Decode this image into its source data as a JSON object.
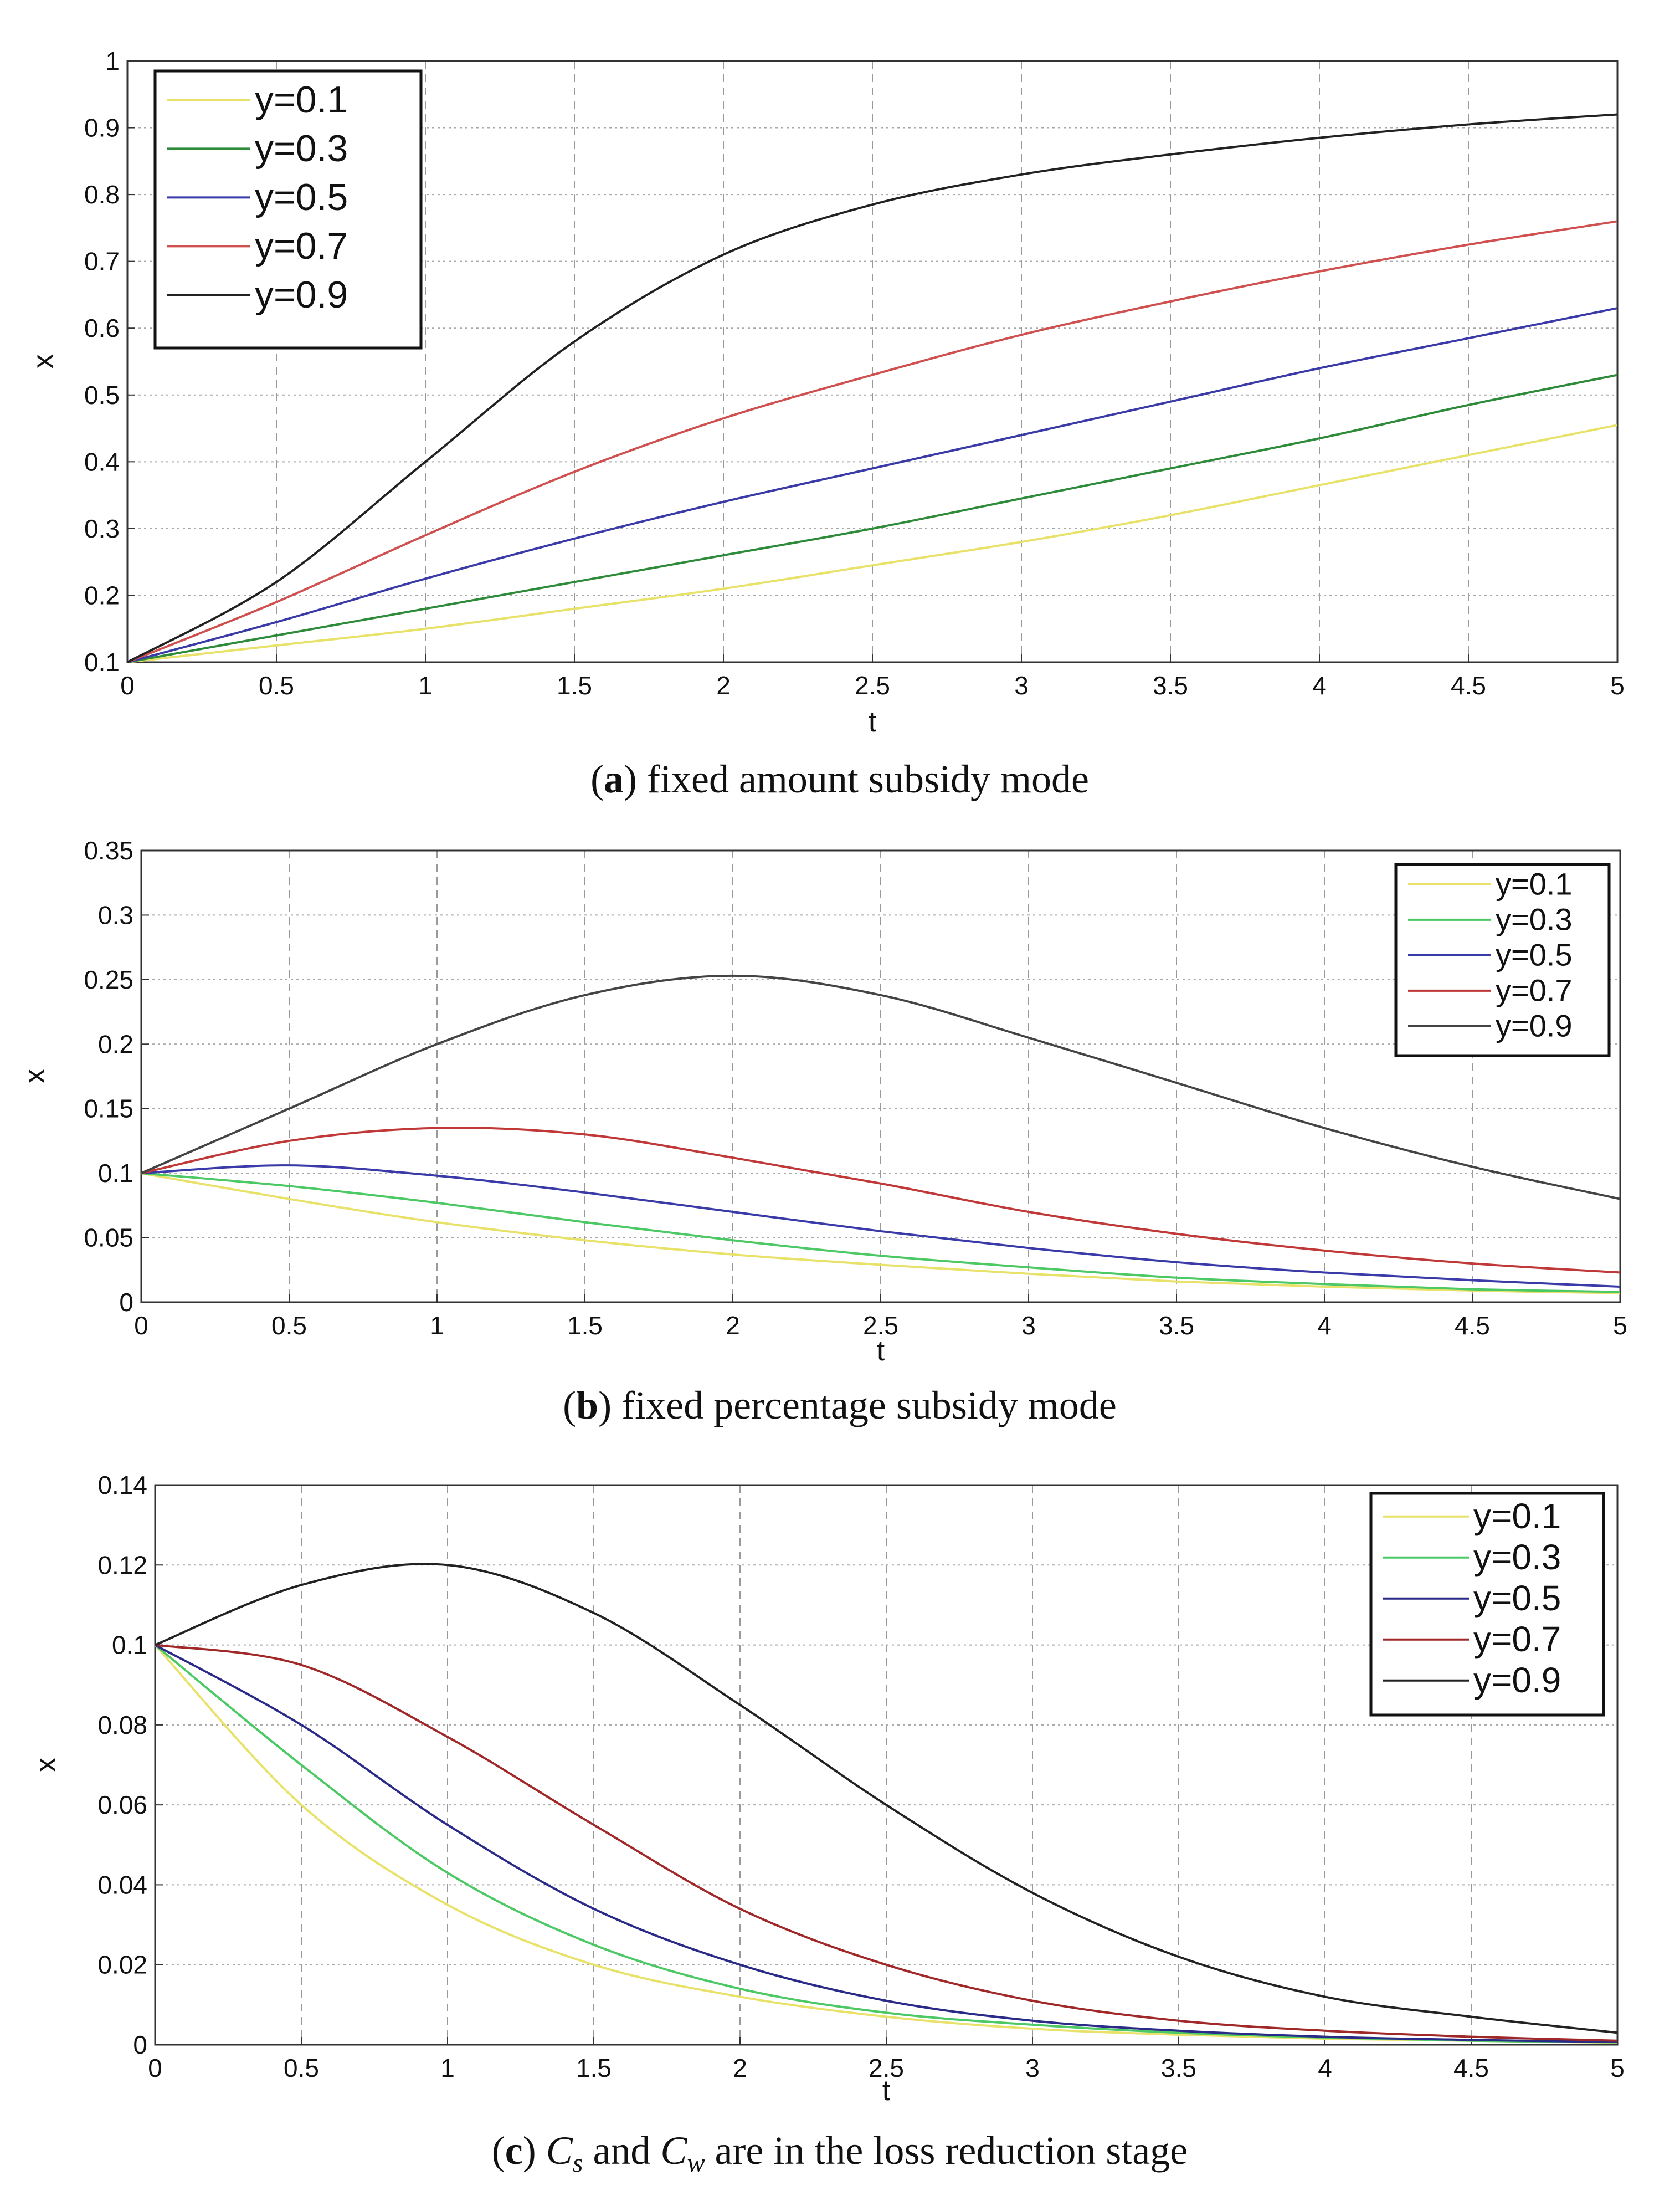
{
  "chart_data": [
    {
      "id": "a",
      "type": "line",
      "title": "",
      "xlabel": "t",
      "ylabel": "x",
      "xlim": [
        0,
        5
      ],
      "ylim": [
        0.1,
        1
      ],
      "xticks": [
        0,
        0.5,
        1,
        1.5,
        2,
        2.5,
        3,
        3.5,
        4,
        4.5,
        5
      ],
      "yticks": [
        0.1,
        0.2,
        0.3,
        0.4,
        0.5,
        0.6,
        0.7,
        0.8,
        0.9,
        1
      ],
      "grid": true,
      "legend_position": "top-left",
      "caption": {
        "prefix": "(",
        "letter": "a",
        "rest": ") fixed amount subsidy mode"
      },
      "series": [
        {
          "name": "y=0.1",
          "color": "#e8e26a",
          "x": [
            0,
            0.5,
            1,
            1.5,
            2,
            2.5,
            3,
            3.5,
            4,
            4.5,
            5
          ],
          "values": [
            0.1,
            0.125,
            0.15,
            0.18,
            0.21,
            0.245,
            0.28,
            0.32,
            0.365,
            0.41,
            0.455
          ]
        },
        {
          "name": "y=0.3",
          "color": "#2e8b3a",
          "x": [
            0,
            0.5,
            1,
            1.5,
            2,
            2.5,
            3,
            3.5,
            4,
            4.5,
            5
          ],
          "values": [
            0.1,
            0.14,
            0.18,
            0.22,
            0.26,
            0.3,
            0.345,
            0.39,
            0.435,
            0.485,
            0.53
          ]
        },
        {
          "name": "y=0.5",
          "color": "#3a3aa8",
          "x": [
            0,
            0.5,
            1,
            1.5,
            2,
            2.5,
            3,
            3.5,
            4,
            4.5,
            5
          ],
          "values": [
            0.1,
            0.16,
            0.225,
            0.285,
            0.34,
            0.39,
            0.44,
            0.49,
            0.54,
            0.585,
            0.63
          ]
        },
        {
          "name": "y=0.7",
          "color": "#d05050",
          "x": [
            0,
            0.5,
            1,
            1.5,
            2,
            2.5,
            3,
            3.5,
            4,
            4.5,
            5
          ],
          "values": [
            0.1,
            0.19,
            0.29,
            0.385,
            0.465,
            0.53,
            0.59,
            0.64,
            0.685,
            0.725,
            0.76
          ]
        },
        {
          "name": "y=0.9",
          "color": "#222222",
          "x": [
            0,
            0.5,
            1,
            1.5,
            2,
            2.5,
            3,
            3.5,
            4,
            4.5,
            5
          ],
          "values": [
            0.1,
            0.22,
            0.4,
            0.58,
            0.71,
            0.785,
            0.83,
            0.86,
            0.885,
            0.905,
            0.92
          ]
        }
      ]
    },
    {
      "id": "b",
      "type": "line",
      "title": "",
      "xlabel": "t",
      "ylabel": "x",
      "xlim": [
        0,
        5
      ],
      "ylim": [
        0,
        0.35
      ],
      "xticks": [
        0,
        0.5,
        1,
        1.5,
        2,
        2.5,
        3,
        3.5,
        4,
        4.5,
        5
      ],
      "yticks": [
        0,
        0.05,
        0.1,
        0.15,
        0.2,
        0.25,
        0.3,
        0.35
      ],
      "grid": true,
      "legend_position": "top-right",
      "caption": {
        "prefix": "(",
        "letter": "b",
        "rest": ") fixed percentage subsidy mode"
      },
      "series": [
        {
          "name": "y=0.1",
          "color": "#e8e26a",
          "x": [
            0,
            0.5,
            1,
            1.5,
            2,
            2.5,
            3,
            3.5,
            4,
            4.5,
            5
          ],
          "values": [
            0.1,
            0.08,
            0.062,
            0.048,
            0.037,
            0.029,
            0.022,
            0.016,
            0.012,
            0.009,
            0.007
          ]
        },
        {
          "name": "y=0.3",
          "color": "#4cc864",
          "x": [
            0,
            0.5,
            1,
            1.5,
            2,
            2.5,
            3,
            3.5,
            4,
            4.5,
            5
          ],
          "values": [
            0.1,
            0.09,
            0.077,
            0.062,
            0.048,
            0.036,
            0.027,
            0.019,
            0.014,
            0.01,
            0.008
          ]
        },
        {
          "name": "y=0.5",
          "color": "#3a3aa8",
          "x": [
            0,
            0.5,
            1,
            1.5,
            2,
            2.5,
            3,
            3.5,
            4,
            4.5,
            5
          ],
          "values": [
            0.1,
            0.106,
            0.098,
            0.085,
            0.07,
            0.055,
            0.042,
            0.031,
            0.023,
            0.017,
            0.012
          ]
        },
        {
          "name": "y=0.7",
          "color": "#c03838",
          "x": [
            0,
            0.5,
            1,
            1.5,
            2,
            2.5,
            3,
            3.5,
            4,
            4.5,
            5
          ],
          "values": [
            0.1,
            0.125,
            0.135,
            0.13,
            0.112,
            0.092,
            0.07,
            0.053,
            0.04,
            0.03,
            0.023
          ]
        },
        {
          "name": "y=0.9",
          "color": "#444444",
          "x": [
            0,
            0.5,
            1,
            1.5,
            2,
            2.5,
            3,
            3.5,
            4,
            4.5,
            5
          ],
          "values": [
            0.1,
            0.15,
            0.2,
            0.238,
            0.253,
            0.238,
            0.205,
            0.17,
            0.135,
            0.105,
            0.08
          ]
        }
      ]
    },
    {
      "id": "c",
      "type": "line",
      "title": "",
      "xlabel": "t",
      "ylabel": "x",
      "xlim": [
        0,
        5
      ],
      "ylim": [
        0,
        0.14
      ],
      "xticks": [
        0,
        0.5,
        1,
        1.5,
        2,
        2.5,
        3,
        3.5,
        4,
        4.5,
        5
      ],
      "yticks": [
        0,
        0.02,
        0.04,
        0.06,
        0.08,
        0.1,
        0.12,
        0.14
      ],
      "grid": true,
      "legend_position": "top-right",
      "caption": {
        "prefix": "(",
        "letter": "c",
        "mid1": ") ",
        "sym1": "C",
        "sub1": "s",
        "mid2": "  and  ",
        "sym2": "C",
        "sub2": "w",
        "rest": "  are in the loss reduction stage"
      },
      "series": [
        {
          "name": "y=0.1",
          "color": "#e8e26a",
          "x": [
            0,
            0.5,
            1,
            1.5,
            2,
            2.5,
            3,
            3.5,
            4,
            4.5,
            5
          ],
          "values": [
            0.1,
            0.06,
            0.035,
            0.02,
            0.012,
            0.007,
            0.004,
            0.0025,
            0.0015,
            0.001,
            0.0005
          ]
        },
        {
          "name": "y=0.3",
          "color": "#4cc864",
          "x": [
            0,
            0.5,
            1,
            1.5,
            2,
            2.5,
            3,
            3.5,
            4,
            4.5,
            5
          ],
          "values": [
            0.1,
            0.07,
            0.043,
            0.025,
            0.014,
            0.008,
            0.005,
            0.003,
            0.0018,
            0.001,
            0.0006
          ]
        },
        {
          "name": "y=0.5",
          "color": "#2a2a88",
          "x": [
            0,
            0.5,
            1,
            1.5,
            2,
            2.5,
            3,
            3.5,
            4,
            4.5,
            5
          ],
          "values": [
            0.1,
            0.08,
            0.055,
            0.034,
            0.02,
            0.011,
            0.006,
            0.0035,
            0.002,
            0.0012,
            0.0007
          ]
        },
        {
          "name": "y=0.7",
          "color": "#a02828",
          "x": [
            0,
            0.5,
            1,
            1.5,
            2,
            2.5,
            3,
            3.5,
            4,
            4.5,
            5
          ],
          "values": [
            0.1,
            0.095,
            0.077,
            0.055,
            0.034,
            0.02,
            0.011,
            0.006,
            0.0035,
            0.002,
            0.001
          ]
        },
        {
          "name": "y=0.9",
          "color": "#222222",
          "x": [
            0,
            0.5,
            1,
            1.5,
            2,
            2.5,
            3,
            3.5,
            4,
            4.5,
            5
          ],
          "values": [
            0.1,
            0.115,
            0.12,
            0.108,
            0.085,
            0.06,
            0.038,
            0.022,
            0.012,
            0.007,
            0.003
          ]
        }
      ]
    }
  ]
}
